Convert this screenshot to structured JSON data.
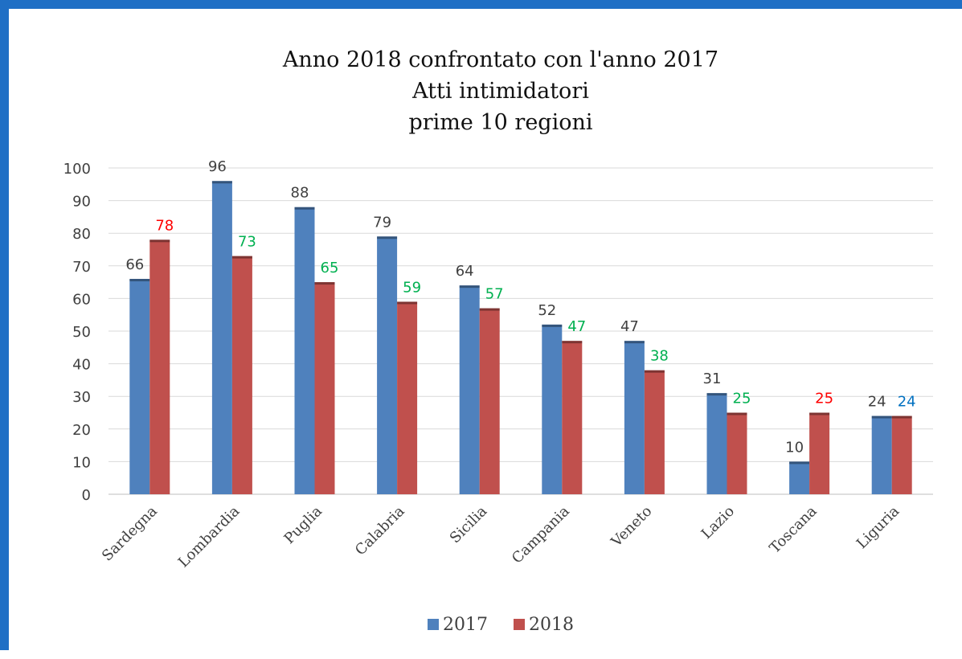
{
  "chart_data": {
    "type": "bar",
    "title_lines": [
      "Anno 2018 confrontato con l'anno 2017",
      "Atti intimidatori",
      "prime 10 regioni"
    ],
    "categories": [
      "Sardegna",
      "Lombardia",
      "Puglia",
      "Calabria",
      "Sicilia",
      "Campania",
      "Veneto",
      "Lazio",
      "Toscana",
      "Liguria"
    ],
    "series": [
      {
        "name": "2017",
        "color": "#4f81bd",
        "values": [
          66,
          96,
          88,
          79,
          64,
          52,
          47,
          31,
          10,
          24
        ],
        "label_colors": [
          "#404040",
          "#404040",
          "#404040",
          "#404040",
          "#404040",
          "#404040",
          "#404040",
          "#404040",
          "#404040",
          "#404040"
        ]
      },
      {
        "name": "2018",
        "color": "#c0504d",
        "values": [
          78,
          73,
          65,
          59,
          57,
          47,
          38,
          25,
          25,
          24
        ],
        "label_colors": [
          "#ff0000",
          "#00b050",
          "#00b050",
          "#00b050",
          "#00b050",
          "#00b050",
          "#00b050",
          "#00b050",
          "#ff0000",
          "#0070c0"
        ]
      }
    ],
    "ylim": [
      0,
      100
    ],
    "yticks": [
      0,
      10,
      20,
      30,
      40,
      50,
      60,
      70,
      80,
      90,
      100
    ],
    "grid": true,
    "legend_position": "bottom",
    "xlabel": "",
    "ylabel": ""
  }
}
